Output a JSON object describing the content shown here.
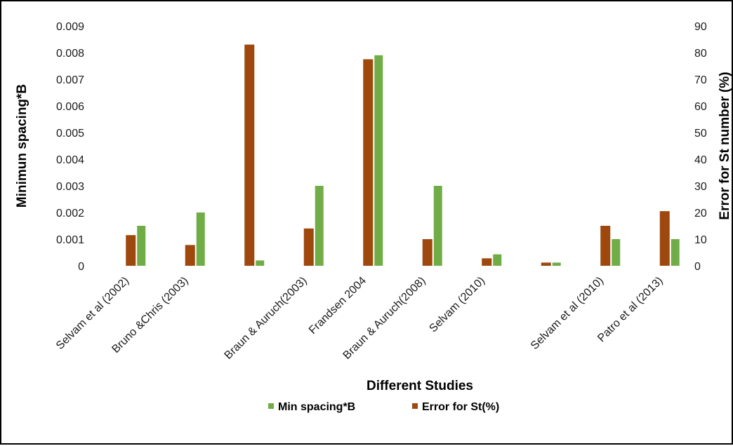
{
  "chart_data": {
    "type": "bar",
    "title": "",
    "xlabel": "Different Studies",
    "ylabel": "Minimun spacing*B",
    "y2label": "Error for St number (%)",
    "ylim": [
      0,
      0.009
    ],
    "y2lim": [
      0,
      90
    ],
    "yticks": [
      "0",
      "0.001",
      "0.002",
      "0.003",
      "0.004",
      "0.005",
      "0.006",
      "0.007",
      "0.008",
      "0.009"
    ],
    "y2ticks": [
      "0",
      "10",
      "20",
      "30",
      "40",
      "50",
      "60",
      "70",
      "80",
      "90"
    ],
    "grid": false,
    "legend_position": "bottom",
    "categories": [
      "Selvam et al (2002)",
      "Bruno &Chris (2003)",
      "",
      "Braun & Auruch(2003)",
      "Frandsen 2004",
      "Braun & Auruch(2008)",
      "Selvam  (2010)",
      "",
      "Selvam et al  (2010)",
      "Patro et al (2013)"
    ],
    "series": [
      {
        "name": "Error for St(%)",
        "axis": "right",
        "color": "#9E480E",
        "values": [
          11.5,
          7.8,
          83,
          14,
          77.5,
          10,
          2.8,
          1.2,
          15,
          20.5
        ]
      },
      {
        "name": "Min spacing*B",
        "axis": "left",
        "color": "#70AD47",
        "values": [
          0.0015,
          0.002,
          0.0002,
          0.003,
          0.0079,
          0.003,
          0.00043,
          0.00012,
          0.001,
          0.001
        ]
      }
    ],
    "legend_order": [
      "Min spacing*B",
      "Error for St(%)"
    ]
  }
}
